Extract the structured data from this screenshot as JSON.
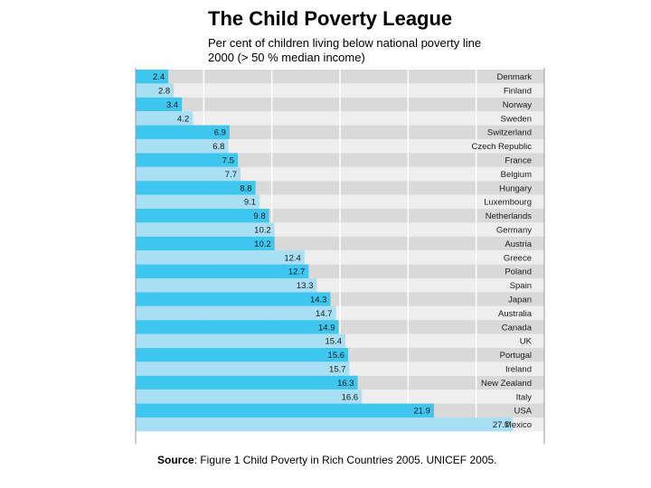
{
  "chart_data": {
    "type": "bar",
    "orientation": "horizontal",
    "title": "The Child Poverty League",
    "subtitle": "Per cent of children living below national poverty line 2000 (> 50 % median income)",
    "categories": [
      "Denmark",
      "Finland",
      "Norway",
      "Sweden",
      "Switzerland",
      "Czech Republic",
      "France",
      "Belgium",
      "Hungary",
      "Luxembourg",
      "Netherlands",
      "Germany",
      "Austria",
      "Greece",
      "Poland",
      "Spain",
      "Japan",
      "Australia",
      "Canada",
      "UK",
      "Portugal",
      "Ireland",
      "New Zealand",
      "Italy",
      "USA",
      "Mexico"
    ],
    "values": [
      2.4,
      2.8,
      3.4,
      4.2,
      6.9,
      6.8,
      7.5,
      7.7,
      8.8,
      9.1,
      9.8,
      10.2,
      10.2,
      12.4,
      12.7,
      13.3,
      14.3,
      14.7,
      14.9,
      15.4,
      15.6,
      15.7,
      16.3,
      16.6,
      21.9,
      27.7
    ],
    "value_labels": [
      "2.4",
      "2.8",
      "3.4",
      "4.2",
      "6.9",
      "6.8",
      "7.5",
      "7.7",
      "8.8",
      "9.1",
      "9.8",
      "10.2",
      "10.2",
      "12.4",
      "12.7",
      "13.3",
      "14.3",
      "14.7",
      "14.9",
      "15.4",
      "15.6",
      "15.7",
      "16.3",
      "16.6",
      "21.9",
      "27.7"
    ],
    "xlim": [
      0,
      30
    ],
    "grid": true,
    "legend": "none",
    "colors": {
      "bar_dark": "#3fc6ee",
      "bar_light": "#a9dff4",
      "track_dark": "#d9d9d9",
      "track_light": "#eeeeee",
      "grid": "#ffffff",
      "frame": "#999999"
    }
  },
  "source": {
    "label": "Source",
    "text": ": Figure 1 Child Poverty in Rich Countries 2005. UNICEF 2005."
  }
}
